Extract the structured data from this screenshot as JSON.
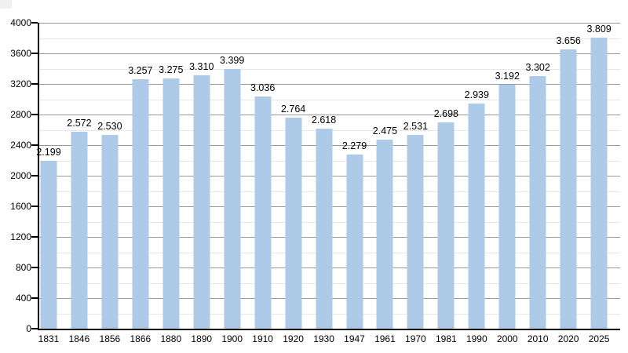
{
  "colors": {
    "background": "#ffffff",
    "bar_fill": "#adcae9",
    "grid_major": "#999999",
    "grid_minor": "#e7e7e7",
    "axis": "#000000",
    "text": "#000000",
    "corner_artifact": "#f0f0f0"
  },
  "chart_data": {
    "type": "bar",
    "bar_orientation": "vertical",
    "categories": [
      "1831",
      "1846",
      "1856",
      "1866",
      "1880",
      "1890",
      "1900",
      "1910",
      "1920",
      "1930",
      "1947",
      "1961",
      "1970",
      "1981",
      "1990",
      "2000",
      "2010",
      "2020",
      "2025"
    ],
    "values": [
      2199,
      2572,
      2530,
      3257,
      3275,
      3310,
      3399,
      3036,
      2764,
      2618,
      2279,
      2475,
      2531,
      2698,
      2939,
      3192,
      3302,
      3656,
      3809
    ],
    "value_labels": [
      "2.199",
      "2.572",
      "2.530",
      "3.257",
      "3.275",
      "3.310",
      "3.399",
      "3.036",
      "2.764",
      "2.618",
      "2.279",
      "2.475",
      "2.531",
      "2.698",
      "2.939",
      "3.192",
      "3.302",
      "3.656",
      "3.809"
    ],
    "y_ticks": [
      "0",
      "400",
      "800",
      "1200",
      "1600",
      "2000",
      "2400",
      "2800",
      "3200",
      "3600",
      "4000"
    ],
    "ylim": [
      0,
      4000
    ],
    "y_major_step": 400,
    "y_minor_step": 200,
    "grid": "horizontal major and minor gridlines",
    "legend": "none"
  }
}
